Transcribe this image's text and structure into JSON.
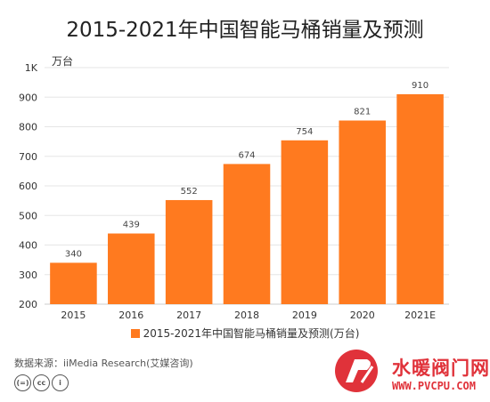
{
  "chart_data": {
    "type": "bar",
    "title": "2015-2021年中国智能马桶销量及预测",
    "unit_label": "万台",
    "categories": [
      "2015",
      "2016",
      "2017",
      "2018",
      "2019",
      "2020",
      "2021E"
    ],
    "values": [
      340,
      439,
      552,
      674,
      754,
      821,
      910
    ],
    "ylim": [
      200,
      1000
    ],
    "yticks": [
      "200",
      "300",
      "400",
      "500",
      "600",
      "700",
      "800",
      "900",
      "1K"
    ],
    "grid": true,
    "legend": "bottom",
    "series": [
      {
        "name": "2015-2021年中国智能马桶销量及预测(万台)",
        "values": [
          340,
          439,
          552,
          674,
          754,
          821,
          910
        ]
      }
    ],
    "bar_color": "#ff7a1f"
  },
  "source": "数据来源：iiMedia Research(艾媒咨询)",
  "license_icons": [
    "cc-icon",
    "by-icon",
    "person-icon"
  ],
  "watermark": {
    "text": "水暖阀门网",
    "url": "WWW.PVCPU.COM"
  }
}
